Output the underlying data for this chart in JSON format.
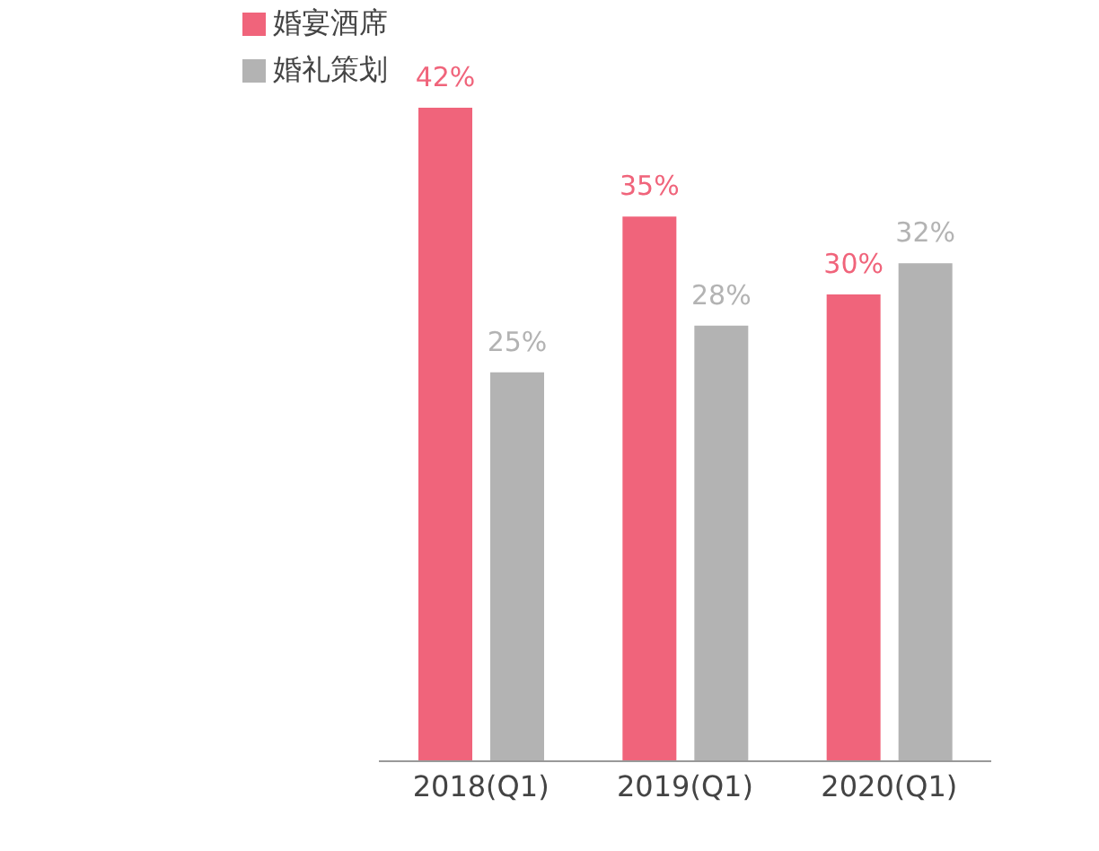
{
  "chart_data": {
    "type": "bar",
    "categories": [
      "2018(Q1)",
      "2019(Q1)",
      "2020(Q1)"
    ],
    "series": [
      {
        "name": "婚宴酒席",
        "color": "#f0647b",
        "values": [
          42,
          35,
          30
        ],
        "value_labels": [
          "42%",
          "35%",
          "30%"
        ]
      },
      {
        "name": "婚礼策划",
        "color": "#b3b3b3",
        "values": [
          25,
          28,
          32
        ],
        "value_labels": [
          "25%",
          "28%",
          "32%"
        ]
      }
    ],
    "legend": "top left",
    "grid": false
  }
}
